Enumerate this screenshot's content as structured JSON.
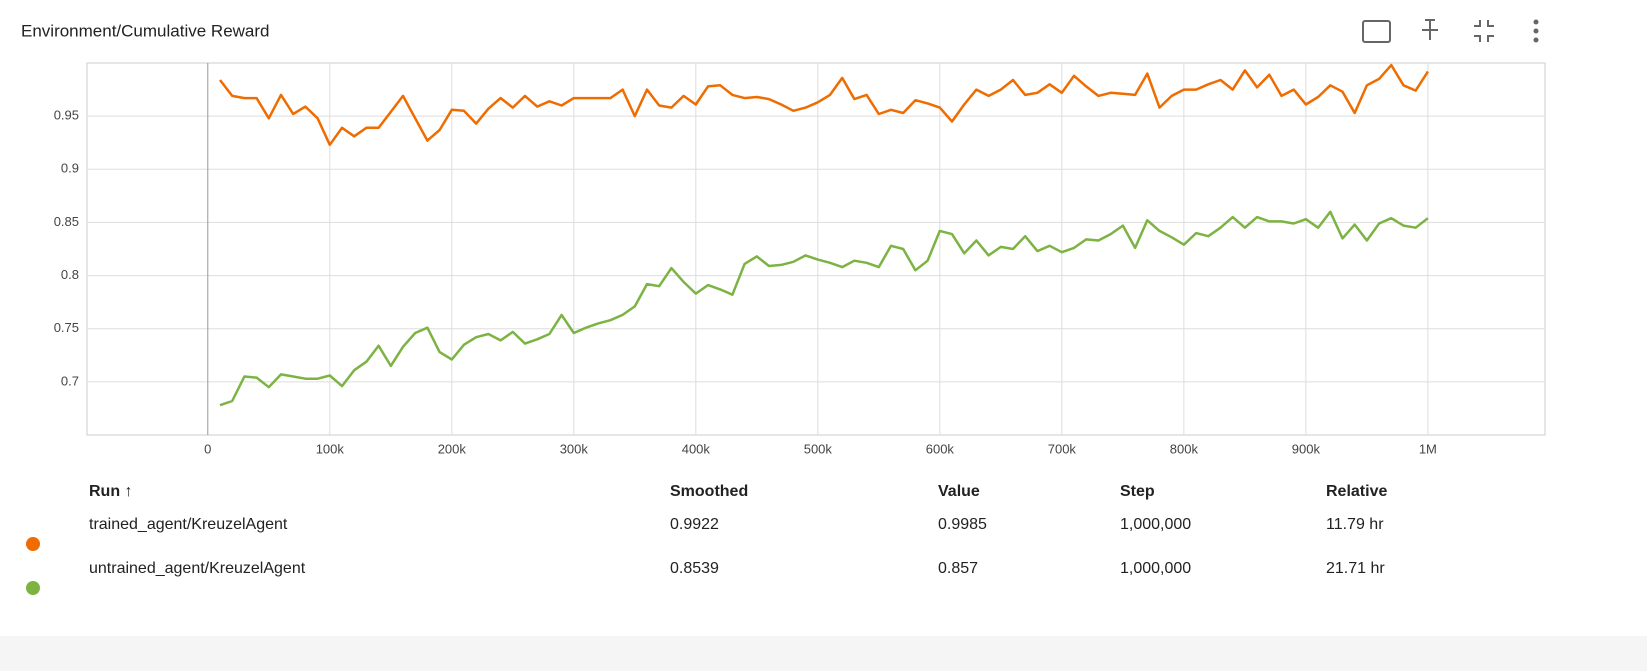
{
  "chart_data": {
    "type": "line",
    "title": "Environment/Cumulative Reward",
    "x": [
      10000,
      20000,
      30000,
      40000,
      50000,
      60000,
      70000,
      80000,
      90000,
      100000,
      110000,
      120000,
      130000,
      140000,
      150000,
      160000,
      170000,
      180000,
      190000,
      200000,
      210000,
      220000,
      230000,
      240000,
      250000,
      260000,
      270000,
      280000,
      290000,
      300000,
      310000,
      320000,
      330000,
      340000,
      350000,
      360000,
      370000,
      380000,
      390000,
      400000,
      410000,
      420000,
      430000,
      440000,
      450000,
      460000,
      470000,
      480000,
      490000,
      500000,
      510000,
      520000,
      530000,
      540000,
      550000,
      560000,
      570000,
      580000,
      590000,
      600000,
      610000,
      620000,
      630000,
      640000,
      650000,
      660000,
      670000,
      680000,
      690000,
      700000,
      710000,
      720000,
      730000,
      740000,
      750000,
      760000,
      770000,
      780000,
      790000,
      800000,
      810000,
      820000,
      830000,
      840000,
      850000,
      860000,
      870000,
      880000,
      890000,
      900000,
      910000,
      920000,
      930000,
      940000,
      950000,
      960000,
      970000,
      980000,
      990000,
      1000000
    ],
    "series": [
      {
        "name": "trained_agent/KreuzelAgent",
        "color": "#ef6c00",
        "values": [
          0.984,
          0.969,
          0.967,
          0.967,
          0.948,
          0.97,
          0.952,
          0.959,
          0.948,
          0.923,
          0.939,
          0.931,
          0.939,
          0.939,
          0.954,
          0.969,
          0.948,
          0.927,
          0.937,
          0.956,
          0.955,
          0.943,
          0.957,
          0.967,
          0.958,
          0.969,
          0.959,
          0.964,
          0.96,
          0.967,
          0.967,
          0.967,
          0.967,
          0.975,
          0.95,
          0.975,
          0.96,
          0.958,
          0.969,
          0.961,
          0.978,
          0.979,
          0.97,
          0.967,
          0.968,
          0.966,
          0.961,
          0.955,
          0.958,
          0.963,
          0.97,
          0.986,
          0.966,
          0.97,
          0.952,
          0.956,
          0.953,
          0.965,
          0.962,
          0.958,
          0.945,
          0.961,
          0.975,
          0.969,
          0.975,
          0.984,
          0.97,
          0.972,
          0.98,
          0.972,
          0.988,
          0.978,
          0.969,
          0.972,
          0.971,
          0.97,
          0.99,
          0.958,
          0.969,
          0.975,
          0.975,
          0.98,
          0.984,
          0.975,
          0.993,
          0.977,
          0.989,
          0.969,
          0.975,
          0.961,
          0.968,
          0.979,
          0.973,
          0.953,
          0.979,
          0.985,
          0.998,
          0.979,
          0.974,
          0.992
        ]
      },
      {
        "name": "untrained_agent/KreuzelAgent",
        "color": "#7cb342",
        "values": [
          0.678,
          0.682,
          0.705,
          0.704,
          0.695,
          0.707,
          0.705,
          0.703,
          0.703,
          0.706,
          0.696,
          0.711,
          0.719,
          0.734,
          0.715,
          0.733,
          0.746,
          0.751,
          0.728,
          0.721,
          0.735,
          0.742,
          0.745,
          0.739,
          0.747,
          0.736,
          0.74,
          0.745,
          0.763,
          0.746,
          0.751,
          0.755,
          0.758,
          0.763,
          0.771,
          0.792,
          0.79,
          0.807,
          0.794,
          0.783,
          0.791,
          0.787,
          0.782,
          0.811,
          0.818,
          0.809,
          0.81,
          0.813,
          0.819,
          0.815,
          0.812,
          0.808,
          0.814,
          0.812,
          0.808,
          0.828,
          0.825,
          0.805,
          0.814,
          0.842,
          0.839,
          0.821,
          0.833,
          0.819,
          0.827,
          0.825,
          0.837,
          0.823,
          0.828,
          0.822,
          0.826,
          0.834,
          0.833,
          0.839,
          0.847,
          0.826,
          0.852,
          0.842,
          0.836,
          0.829,
          0.84,
          0.837,
          0.845,
          0.855,
          0.845,
          0.855,
          0.851,
          0.851,
          0.849,
          0.853,
          0.845,
          0.86,
          0.835,
          0.848,
          0.833,
          0.849,
          0.854,
          0.847,
          0.845,
          0.854
        ]
      }
    ],
    "xlim": [
      -99000,
      1096000
    ],
    "xticks": [
      0,
      {
        "value": 100000,
        "label": "100k"
      },
      {
        "value": 200000,
        "label": "200k"
      },
      {
        "value": 300000,
        "label": "300k"
      },
      {
        "value": 400000,
        "label": "400k"
      },
      {
        "value": 500000,
        "label": "500k"
      },
      {
        "value": 600000,
        "label": "600k"
      },
      {
        "value": 700000,
        "label": "700k"
      },
      {
        "value": 800000,
        "label": "800k"
      },
      {
        "value": 900000,
        "label": "900k"
      },
      {
        "value": 1000000,
        "label": "1M"
      }
    ],
    "ylim": [
      0.65,
      1.0
    ],
    "yticks": [
      0.7,
      0.75,
      0.8,
      0.85,
      0.9,
      0.95
    ],
    "grid": true
  },
  "table": {
    "columns": [
      "Run ↑",
      "Smoothed",
      "Value",
      "Step",
      "Relative"
    ],
    "rows": [
      [
        "trained_agent/KreuzelAgent",
        "0.9922",
        "0.9985",
        "1,000,000",
        "11.79 hr"
      ],
      [
        "untrained_agent/KreuzelAgent",
        "0.8539",
        "0.857",
        "1,000,000",
        "21.71 hr"
      ]
    ]
  }
}
